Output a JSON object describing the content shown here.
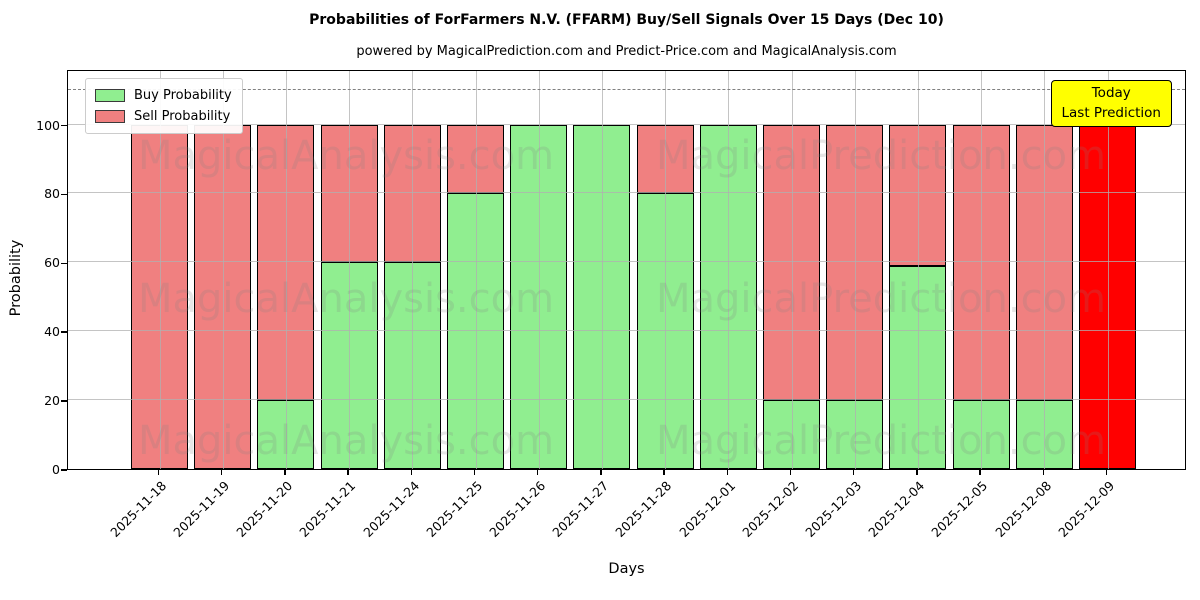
{
  "title": "Probabilities of ForFarmers N.V. (FFARM) Buy/Sell Signals Over 15 Days (Dec 10)",
  "subtitle": "powered by MagicalPrediction.com and Predict-Price.com and MagicalAnalysis.com",
  "legend": {
    "buy_label": "Buy Probability",
    "sell_label": "Sell Probability"
  },
  "annotation": {
    "line1": "Today",
    "line2": "Last Prediction"
  },
  "watermarks": {
    "left": "MagicalAnalysis.com",
    "right": "MagicalPrediction.com"
  },
  "colors": {
    "buy": "#90EE90",
    "sell": "#F08080",
    "last_bar": "#FF0000",
    "annotation_bg": "#FFFF00",
    "grid": "#b0b0b0",
    "dashed_line": "#808080"
  },
  "chart_data": {
    "type": "bar",
    "stacked": true,
    "title": "Probabilities of ForFarmers N.V. (FFARM) Buy/Sell Signals Over 15 Days (Dec 10)",
    "xlabel": "Days",
    "ylabel": "Probability",
    "ylim": [
      0,
      116
    ],
    "yticks": [
      0,
      20,
      40,
      60,
      80,
      100
    ],
    "dashed_threshold": 110,
    "grid": true,
    "legend_position": "upper left",
    "categories": [
      "2025-11-18",
      "2025-11-19",
      "2025-11-20",
      "2025-11-21",
      "2025-11-24",
      "2025-11-25",
      "2025-11-26",
      "2025-11-27",
      "2025-11-28",
      "2025-12-01",
      "2025-12-02",
      "2025-12-03",
      "2025-12-04",
      "2025-12-05",
      "2025-12-08",
      "2025-12-09"
    ],
    "series": [
      {
        "name": "Buy Probability",
        "color": "#90EE90",
        "values": [
          0,
          0,
          20,
          60,
          60,
          80,
          100,
          100,
          80,
          100,
          20,
          20,
          59,
          20,
          20,
          0
        ]
      },
      {
        "name": "Sell Probability",
        "color": "#F08080",
        "values": [
          100,
          100,
          80,
          40,
          40,
          20,
          0,
          0,
          20,
          0,
          80,
          80,
          41,
          80,
          80,
          100
        ]
      }
    ],
    "last_bar_note": "2025-12-09 drawn in solid bright red as the last prediction (Today)"
  }
}
